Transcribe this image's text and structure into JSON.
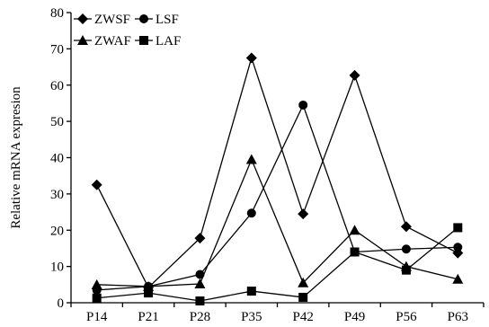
{
  "chart_data": {
    "type": "line",
    "categories": [
      "P14",
      "P21",
      "P28",
      "P35",
      "P42",
      "P49",
      "P56",
      "P63"
    ],
    "ylabel": "Relative mRNA expresion",
    "xlabel": "",
    "ylim": [
      0,
      80
    ],
    "yticks": [
      0,
      10,
      20,
      30,
      40,
      50,
      60,
      70,
      80
    ],
    "grid": false,
    "legend_position": "top-left",
    "series": [
      {
        "name": "ZWSF",
        "marker": "diamond",
        "values": [
          32.5,
          4.2,
          17.8,
          67.5,
          24.5,
          62.7,
          21.0,
          13.7
        ]
      },
      {
        "name": "LSF",
        "marker": "circle",
        "values": [
          3.5,
          4.5,
          7.8,
          24.7,
          54.5,
          14.0,
          14.8,
          15.3
        ]
      },
      {
        "name": "ZWAF",
        "marker": "triangle",
        "values": [
          5.0,
          4.5,
          5.2,
          39.5,
          5.5,
          20.0,
          10.0,
          6.5
        ]
      },
      {
        "name": "LAF",
        "marker": "square",
        "values": [
          1.3,
          2.7,
          0.5,
          3.2,
          1.5,
          14.0,
          9.0,
          20.7
        ]
      }
    ]
  }
}
